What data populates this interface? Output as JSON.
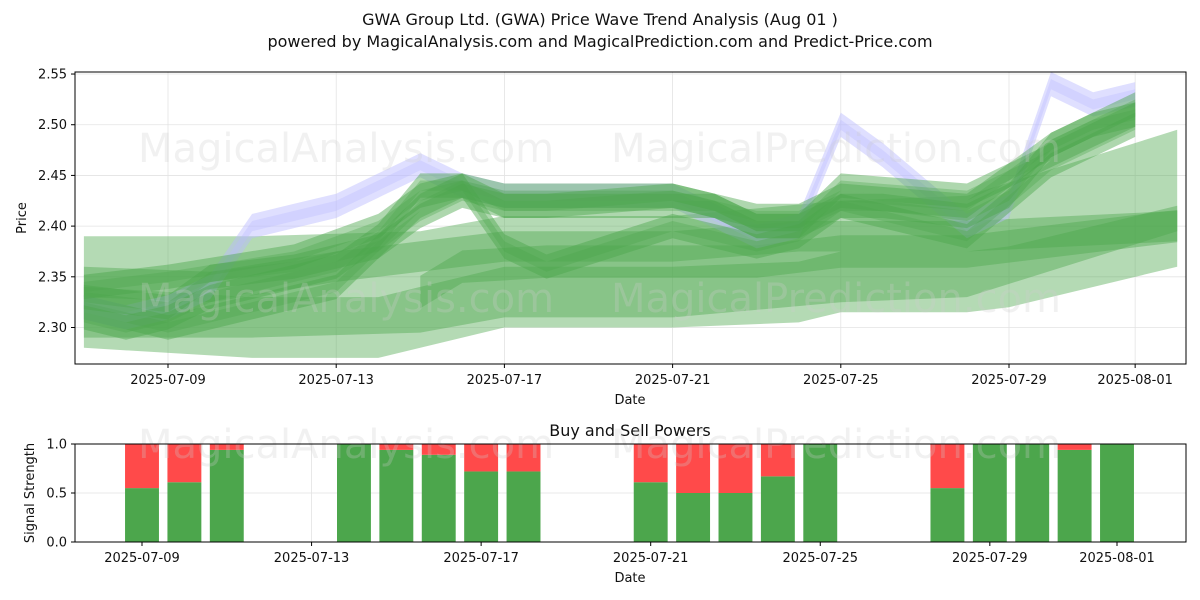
{
  "title": "GWA Group Ltd. (GWA) Price Wave Trend Analysis (Aug 01 )",
  "subtitle": "powered by MagicalAnalysis.com and MagicalPrediction.com and Predict-Price.com",
  "watermarks": [
    "MagicalAnalysis.com",
    "MagicalPrediction.com"
  ],
  "colors": {
    "buy": "#4ca64c",
    "sell": "#ff4a4a",
    "band": "#4ca64c",
    "blue_band": "#b9b9ff"
  },
  "chart_data": [
    {
      "type": "area",
      "xlabel": "Date",
      "ylabel": "Price",
      "ylim": [
        2.264,
        2.552
      ],
      "xlim": [
        "2025-07-06",
        "2025-08-02"
      ],
      "yticks": [
        2.3,
        2.35,
        2.4,
        2.45,
        2.5,
        2.55
      ],
      "ytick_labels": [
        "2.30",
        "2.35",
        "2.40",
        "2.45",
        "2.50",
        "2.55"
      ],
      "xticks": [
        "2025-07-09",
        "2025-07-13",
        "2025-07-17",
        "2025-07-21",
        "2025-07-25",
        "2025-07-29",
        "2025-08-01"
      ],
      "grid": true,
      "bands": [
        {
          "x": [
            "2025-07-07",
            "2025-07-11",
            "2025-07-14",
            "2025-07-15",
            "2025-07-17",
            "2025-07-21",
            "2025-07-24",
            "2025-07-25",
            "2025-07-28",
            "2025-07-29",
            "2025-08-02"
          ],
          "y": [
            2.31,
            2.3,
            2.3,
            2.31,
            2.33,
            2.33,
            2.335,
            2.345,
            2.345,
            2.35,
            2.39
          ],
          "width": 0.03
        },
        {
          "x": [
            "2025-07-07",
            "2025-07-11",
            "2025-07-15",
            "2025-07-17",
            "2025-07-21",
            "2025-07-25",
            "2025-07-28",
            "2025-08-02"
          ],
          "y": [
            2.34,
            2.34,
            2.345,
            2.36,
            2.36,
            2.375,
            2.38,
            2.445
          ],
          "width": 0.05
        },
        {
          "x": [
            "2025-07-07",
            "2025-07-10",
            "2025-07-13",
            "2025-07-15",
            "2025-07-17",
            "2025-07-21",
            "2025-07-24",
            "2025-07-25",
            "2025-07-28",
            "2025-08-02"
          ],
          "y": [
            2.345,
            2.34,
            2.36,
            2.37,
            2.38,
            2.38,
            2.39,
            2.39,
            2.39,
            2.4
          ],
          "width": 0.015
        },
        {
          "x": [
            "2025-07-15",
            "2025-07-16",
            "2025-07-18",
            "2025-07-21",
            "2025-07-23",
            "2025-07-24",
            "2025-07-25",
            "2025-07-28",
            "2025-08-02"
          ],
          "y": [
            2.335,
            2.36,
            2.365,
            2.365,
            2.365,
            2.37,
            2.375,
            2.375,
            2.4
          ],
          "width": 0.016
        }
      ],
      "series": [
        {
          "band": "blue_band",
          "x": [
            "2025-07-07",
            "2025-07-08",
            "2025-07-09",
            "2025-07-10",
            "2025-07-11",
            "2025-07-12",
            "2025-07-13",
            "2025-07-14",
            "2025-07-15",
            "2025-07-16",
            "2025-07-17",
            "2025-07-18",
            "2025-07-21",
            "2025-07-22",
            "2025-07-23",
            "2025-07-24",
            "2025-07-25",
            "2025-07-26",
            "2025-07-28",
            "2025-07-29",
            "2025-07-30",
            "2025-07-31",
            "2025-08-01"
          ],
          "y": [
            2.32,
            2.31,
            2.32,
            2.34,
            2.4,
            2.41,
            2.42,
            2.44,
            2.46,
            2.44,
            2.43,
            2.43,
            2.43,
            2.41,
            2.39,
            2.4,
            2.5,
            2.47,
            2.4,
            2.42,
            2.54,
            2.52,
            2.53
          ]
        },
        {
          "band": "band",
          "x": [
            "2025-07-07",
            "2025-07-08",
            "2025-07-09",
            "2025-07-10",
            "2025-07-11",
            "2025-07-12",
            "2025-07-13",
            "2025-07-14",
            "2025-07-15",
            "2025-07-16",
            "2025-07-17",
            "2025-07-18",
            "2025-07-21",
            "2025-07-22",
            "2025-07-23",
            "2025-07-24",
            "2025-07-25",
            "2025-07-26",
            "2025-07-28",
            "2025-07-29",
            "2025-07-30",
            "2025-07-31",
            "2025-08-01"
          ],
          "y": [
            2.31,
            2.3,
            2.31,
            2.33,
            2.34,
            2.35,
            2.36,
            2.39,
            2.44,
            2.44,
            2.42,
            2.42,
            2.42,
            2.42,
            2.4,
            2.4,
            2.42,
            2.42,
            2.41,
            2.43,
            2.48,
            2.5,
            2.51
          ]
        },
        {
          "band": "band",
          "x": [
            "2025-07-07",
            "2025-07-09",
            "2025-07-10",
            "2025-07-12",
            "2025-07-14",
            "2025-07-15",
            "2025-07-16",
            "2025-07-17",
            "2025-07-18",
            "2025-07-21",
            "2025-07-22",
            "2025-07-23",
            "2025-07-24",
            "2025-07-25",
            "2025-07-28",
            "2025-07-30",
            "2025-08-01"
          ],
          "y": [
            2.33,
            2.32,
            2.35,
            2.36,
            2.38,
            2.41,
            2.43,
            2.42,
            2.42,
            2.43,
            2.42,
            2.4,
            2.4,
            2.44,
            2.43,
            2.47,
            2.51
          ]
        },
        {
          "band": "band",
          "x": [
            "2025-07-07",
            "2025-07-09",
            "2025-07-11",
            "2025-07-13",
            "2025-07-15",
            "2025-07-16",
            "2025-07-17",
            "2025-07-18",
            "2025-07-21",
            "2025-07-23",
            "2025-07-24",
            "2025-07-25",
            "2025-07-28",
            "2025-07-30",
            "2025-08-01"
          ],
          "y": [
            2.32,
            2.3,
            2.32,
            2.34,
            2.42,
            2.44,
            2.38,
            2.36,
            2.4,
            2.38,
            2.39,
            2.42,
            2.39,
            2.46,
            2.5
          ]
        },
        {
          "band": "band",
          "x": [
            "2025-07-07",
            "2025-07-09",
            "2025-07-12",
            "2025-07-14",
            "2025-07-15",
            "2025-07-16",
            "2025-07-17",
            "2025-07-18",
            "2025-07-21",
            "2025-07-23",
            "2025-07-24",
            "2025-07-25",
            "2025-07-28",
            "2025-07-30",
            "2025-08-01"
          ],
          "y": [
            2.34,
            2.35,
            2.37,
            2.4,
            2.43,
            2.44,
            2.43,
            2.43,
            2.43,
            2.41,
            2.41,
            2.43,
            2.42,
            2.48,
            2.52
          ]
        }
      ]
    },
    {
      "type": "bar",
      "title": "Buy and Sell Powers",
      "xlabel": "Date",
      "ylabel": "Signal Strength",
      "ylim": [
        0,
        1.0
      ],
      "yticks": [
        0.0,
        0.5,
        1.0
      ],
      "ytick_labels": [
        "0.0",
        "0.5",
        "1.0"
      ],
      "xticks": [
        "2025-07-09",
        "2025-07-13",
        "2025-07-17",
        "2025-07-21",
        "2025-07-25",
        "2025-07-29",
        "2025-08-01"
      ],
      "categories": [
        "2025-07-09",
        "2025-07-10",
        "2025-07-11",
        "2025-07-14",
        "2025-07-15",
        "2025-07-16",
        "2025-07-17",
        "2025-07-18",
        "2025-07-21",
        "2025-07-22",
        "2025-07-23",
        "2025-07-24",
        "2025-07-25",
        "2025-07-28",
        "2025-07-29",
        "2025-07-30",
        "2025-07-31",
        "2025-08-01"
      ],
      "series": [
        {
          "name": "Buy",
          "values": [
            0.55,
            0.61,
            0.94,
            1.0,
            0.94,
            0.89,
            0.72,
            0.72,
            0.61,
            0.5,
            0.5,
            0.67,
            1.0,
            0.55,
            1.0,
            1.0,
            0.94,
            1.0
          ]
        },
        {
          "name": "Sell",
          "values": [
            0.45,
            0.39,
            0.06,
            0.0,
            0.06,
            0.11,
            0.28,
            0.28,
            0.39,
            0.5,
            0.5,
            0.33,
            0.0,
            0.45,
            0.0,
            0.0,
            0.06,
            0.0
          ]
        }
      ]
    }
  ]
}
